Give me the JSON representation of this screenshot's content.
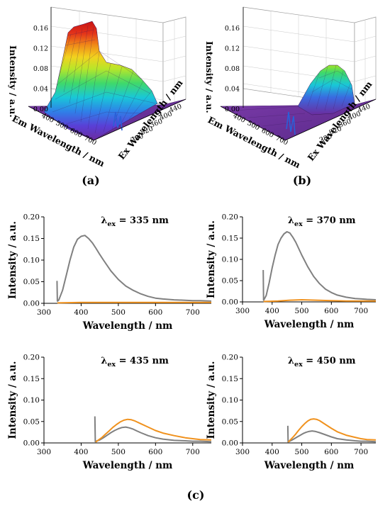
{
  "labels": {
    "a": "(a)",
    "b": "(b)",
    "c": "(c)"
  },
  "surface_plots": [
    {
      "id": "a",
      "zlabel": "Intensity / a.u.",
      "xlabel": "Em Wavelength / nm",
      "ylabel": "Ex Wavelength / nm",
      "ztick_labels": [
        "0.00",
        "0.04",
        "0.08",
        "0.12",
        "0.16"
      ],
      "em_tick_labels": [
        "400",
        "500",
        "600",
        "700"
      ],
      "ex_tick_labels": [
        "280",
        "320",
        "360",
        "400",
        "440"
      ]
    },
    {
      "id": "b",
      "zlabel": "Intensity / a.u.",
      "xlabel": "Em Wavelength / nm",
      "ylabel": "Ex Wavelength / nm",
      "ztick_labels": [
        "0.00",
        "0.04",
        "0.08",
        "0.12",
        "0.16"
      ],
      "em_tick_labels": [
        "400",
        "500",
        "600",
        "700"
      ],
      "ex_tick_labels": [
        "280",
        "320",
        "360",
        "400",
        "440"
      ]
    }
  ],
  "colors": {
    "grey_series": "#808080",
    "orange_series": "#f0921e",
    "axis": "#000000"
  },
  "chart_data": [
    {
      "type": "line",
      "annotation_prefix": "λ",
      "annotation_sub": "ex",
      "annotation_value": " = 335 nm",
      "xlabel": "Wavelength / nm",
      "ylabel": "Intensity / a.u.",
      "xlim": [
        300,
        750
      ],
      "ylim": [
        0,
        0.2
      ],
      "xticks": [
        "300",
        "400",
        "500",
        "600",
        "700"
      ],
      "yticks": [
        "0.00",
        "0.05",
        "0.10",
        "0.15",
        "0.20"
      ],
      "series": [
        {
          "color": "#808080",
          "x": [
            335,
            336,
            338,
            340,
            350,
            360,
            370,
            380,
            390,
            400,
            410,
            420,
            430,
            440,
            450,
            460,
            480,
            500,
            520,
            540,
            560,
            580,
            600,
            620,
            650,
            680,
            700,
            720,
            750
          ],
          "y": [
            0.052,
            0.005,
            0.006,
            0.008,
            0.03,
            0.065,
            0.1,
            0.13,
            0.148,
            0.155,
            0.157,
            0.15,
            0.14,
            0.127,
            0.113,
            0.1,
            0.075,
            0.055,
            0.04,
            0.03,
            0.022,
            0.016,
            0.012,
            0.01,
            0.008,
            0.007,
            0.006,
            0.006,
            0.005
          ]
        },
        {
          "color": "#f0921e",
          "x": [
            336,
            400,
            500,
            600,
            700,
            750
          ],
          "y": [
            0.001,
            0.002,
            0.002,
            0.002,
            0.002,
            0.002
          ]
        }
      ]
    },
    {
      "type": "line",
      "annotation_prefix": "λ",
      "annotation_sub": "ex",
      "annotation_value": " = 370 nm",
      "xlabel": "Wavelength / nm",
      "ylabel": "Intensity / a.u.",
      "xlim": [
        300,
        750
      ],
      "ylim": [
        0,
        0.2
      ],
      "xticks": [
        "300",
        "400",
        "500",
        "600",
        "700"
      ],
      "yticks": [
        "0.00",
        "0.05",
        "0.10",
        "0.15",
        "0.20"
      ],
      "series": [
        {
          "color": "#808080",
          "x": [
            370,
            371,
            373,
            380,
            390,
            400,
            410,
            420,
            430,
            440,
            450,
            460,
            470,
            480,
            500,
            520,
            540,
            560,
            580,
            600,
            620,
            650,
            680,
            700,
            720,
            750
          ],
          "y": [
            0.075,
            0.004,
            0.006,
            0.015,
            0.045,
            0.08,
            0.11,
            0.135,
            0.15,
            0.16,
            0.165,
            0.162,
            0.152,
            0.14,
            0.11,
            0.083,
            0.06,
            0.043,
            0.03,
            0.022,
            0.016,
            0.011,
            0.008,
            0.007,
            0.006,
            0.005
          ]
        },
        {
          "color": "#f0921e",
          "x": [
            371,
            420,
            460,
            500,
            550,
            600,
            650,
            700,
            750
          ],
          "y": [
            0.001,
            0.002,
            0.004,
            0.005,
            0.004,
            0.003,
            0.002,
            0.002,
            0.002
          ]
        }
      ]
    },
    {
      "type": "line",
      "annotation_prefix": "λ",
      "annotation_sub": "ex",
      "annotation_value": " = 435 nm",
      "xlabel": "Wavelength / nm",
      "ylabel": "Intensity / a.u.",
      "xlim": [
        300,
        750
      ],
      "ylim": [
        0,
        0.2
      ],
      "xticks": [
        "300",
        "400",
        "500",
        "600",
        "700"
      ],
      "yticks": [
        "0.00",
        "0.05",
        "0.10",
        "0.15",
        "0.20"
      ],
      "series": [
        {
          "color": "#808080",
          "x": [
            437,
            438,
            440,
            450,
            460,
            470,
            480,
            490,
            500,
            510,
            520,
            530,
            540,
            550,
            560,
            580,
            600,
            620,
            650,
            680,
            700,
            720,
            750
          ],
          "y": [
            0.062,
            0.003,
            0.004,
            0.007,
            0.012,
            0.018,
            0.024,
            0.029,
            0.033,
            0.036,
            0.037,
            0.035,
            0.032,
            0.028,
            0.024,
            0.017,
            0.012,
            0.009,
            0.006,
            0.005,
            0.004,
            0.004,
            0.003
          ]
        },
        {
          "color": "#f0921e",
          "x": [
            439,
            445,
            455,
            465,
            475,
            485,
            495,
            505,
            515,
            525,
            535,
            545,
            560,
            580,
            600,
            620,
            650,
            680,
            700,
            720,
            750
          ],
          "y": [
            0.002,
            0.006,
            0.012,
            0.02,
            0.028,
            0.036,
            0.043,
            0.049,
            0.053,
            0.055,
            0.054,
            0.051,
            0.045,
            0.037,
            0.029,
            0.023,
            0.017,
            0.012,
            0.01,
            0.008,
            0.007
          ]
        }
      ]
    },
    {
      "type": "line",
      "annotation_prefix": "λ",
      "annotation_sub": "ex",
      "annotation_value": " = 450 nm",
      "xlabel": "Wavelength / nm",
      "ylabel": "Intensity / a.u.",
      "xlim": [
        300,
        750
      ],
      "ylim": [
        0,
        0.2
      ],
      "xticks": [
        "300",
        "400",
        "500",
        "600",
        "700"
      ],
      "yticks": [
        "0.00",
        "0.05",
        "0.10",
        "0.15",
        "0.20"
      ],
      "series": [
        {
          "color": "#808080",
          "x": [
            453,
            454,
            456,
            465,
            475,
            485,
            495,
            505,
            515,
            525,
            535,
            545,
            560,
            580,
            600,
            620,
            650,
            680,
            700,
            720,
            750
          ],
          "y": [
            0.04,
            0.002,
            0.003,
            0.006,
            0.01,
            0.014,
            0.018,
            0.022,
            0.025,
            0.027,
            0.028,
            0.027,
            0.024,
            0.019,
            0.014,
            0.01,
            0.007,
            0.005,
            0.004,
            0.004,
            0.003
          ]
        },
        {
          "color": "#f0921e",
          "x": [
            454,
            460,
            470,
            480,
            490,
            500,
            510,
            520,
            530,
            540,
            550,
            560,
            580,
            600,
            620,
            650,
            680,
            700,
            720,
            750
          ],
          "y": [
            0.002,
            0.006,
            0.013,
            0.021,
            0.03,
            0.038,
            0.045,
            0.051,
            0.055,
            0.056,
            0.055,
            0.052,
            0.043,
            0.034,
            0.026,
            0.018,
            0.013,
            0.01,
            0.008,
            0.007
          ]
        }
      ]
    }
  ]
}
